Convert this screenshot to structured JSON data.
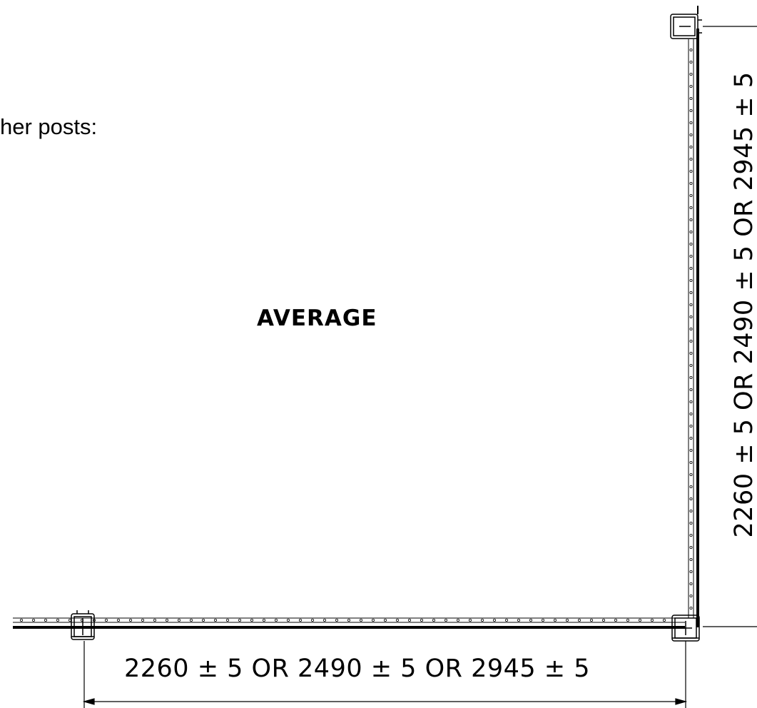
{
  "caption": "her posts:",
  "center_title": "AVERAGE",
  "dimension_horizontal": "2260 ± 5  OR  2490 ± 5  OR  2945 ± 5",
  "dimension_vertical": "2260 ± 5  OR  2490 ± 5  OR  2945 ± 5",
  "colors": {
    "line": "#000000",
    "background": "#ffffff"
  }
}
